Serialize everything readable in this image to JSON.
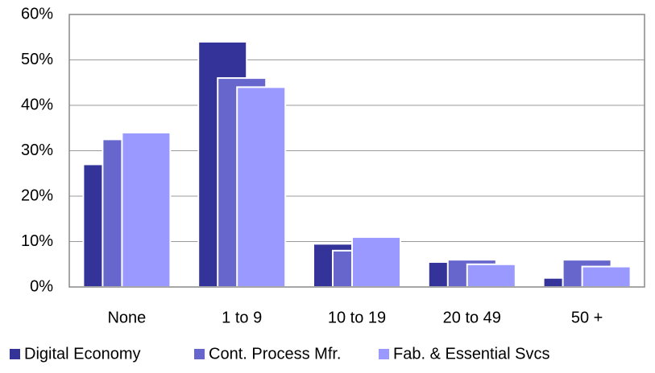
{
  "chart_data": {
    "type": "bar",
    "categories": [
      "None",
      "1 to 9",
      "10 to 19",
      "20 to 49",
      "50 +"
    ],
    "series": [
      {
        "name": "Digital Economy",
        "color": "#333399",
        "values": [
          27,
          54,
          9.5,
          5.5,
          2
        ]
      },
      {
        "name": "Cont. Process Mfr.",
        "color": "#6666cc",
        "values": [
          32.5,
          46,
          8,
          6,
          6
        ]
      },
      {
        "name": "Fab. & Essential Svcs",
        "color": "#9999ff",
        "values": [
          34,
          44,
          11,
          5,
          4.5
        ]
      }
    ],
    "ylim": [
      0,
      60
    ],
    "yticks": [
      {
        "value": 0,
        "label": "0%"
      },
      {
        "value": 10,
        "label": "10%"
      },
      {
        "value": 20,
        "label": "20%"
      },
      {
        "value": 30,
        "label": "30%"
      },
      {
        "value": 40,
        "label": "40%"
      },
      {
        "value": 50,
        "label": "50%"
      },
      {
        "value": 60,
        "label": "60%"
      }
    ],
    "grid": true,
    "legend": "bottom"
  }
}
